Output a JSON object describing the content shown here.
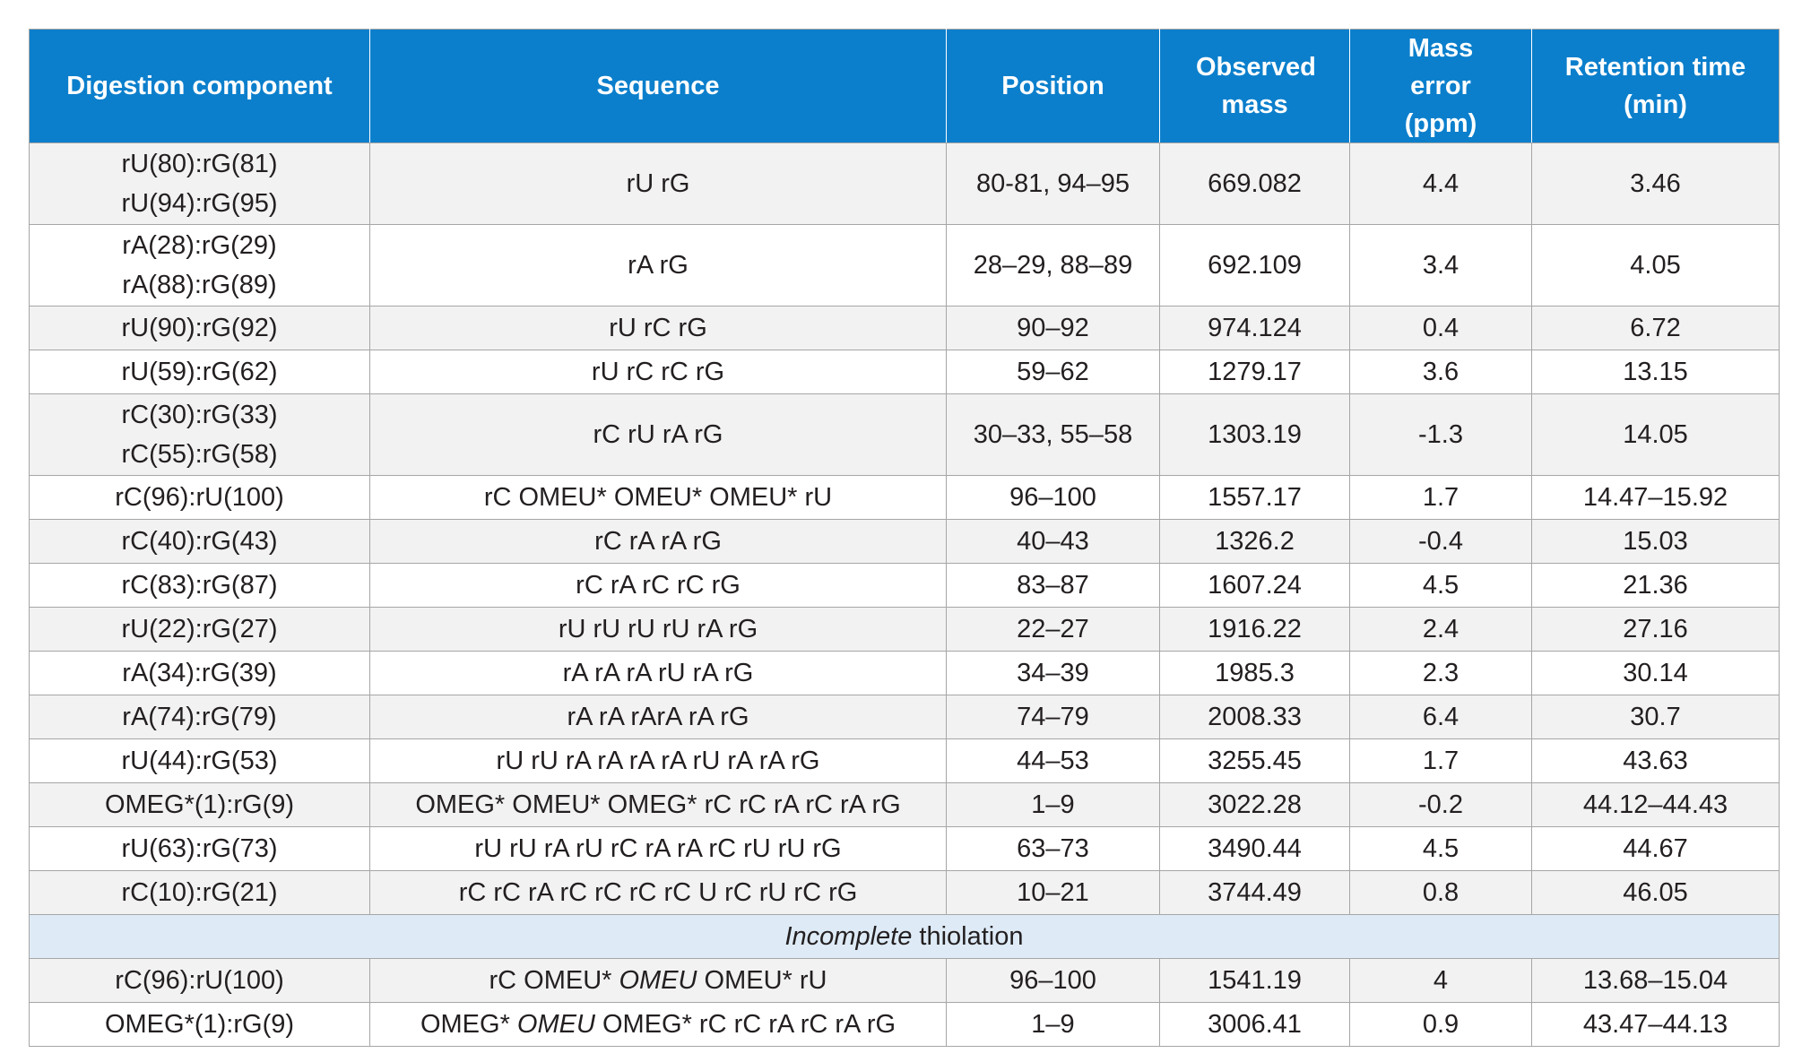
{
  "headers": {
    "component": "Digestion component",
    "sequence": "Sequence",
    "position": "Position",
    "observed_mass": "Observed mass",
    "mass_error": "Mass error (ppm)",
    "retention_time": "Retention time (min)"
  },
  "rows": [
    {
      "component_1": "rU(80):rG(81)",
      "component_2": "rU(94):rG(95)",
      "sequence": "rU rG",
      "position": "80-81, 94–95",
      "observed_mass": "669.082",
      "mass_error": "4.4",
      "retention_time": "3.46"
    },
    {
      "component_1": "rA(28):rG(29)",
      "component_2": "rA(88):rG(89)",
      "sequence": "rA rG",
      "position": "28–29, 88–89",
      "observed_mass": "692.109",
      "mass_error": "3.4",
      "retention_time": "4.05"
    },
    {
      "component_1": "rU(90):rG(92)",
      "sequence": "rU rC rG",
      "position": "90–92",
      "observed_mass": "974.124",
      "mass_error": "0.4",
      "retention_time": "6.72"
    },
    {
      "component_1": "rU(59):rG(62)",
      "sequence": "rU rC rC rG",
      "position": "59–62",
      "observed_mass": "1279.17",
      "mass_error": "3.6",
      "retention_time": "13.15"
    },
    {
      "component_1": "rC(30):rG(33)",
      "component_2": "rC(55):rG(58)",
      "sequence": "rC rU rA rG",
      "position": "30–33, 55–58",
      "observed_mass": "1303.19",
      "mass_error": "-1.3",
      "retention_time": "14.05"
    },
    {
      "component_1": "rC(96):rU(100)",
      "sequence": "rC OMEU* OMEU* OMEU* rU",
      "position": "96–100",
      "observed_mass": "1557.17",
      "mass_error": "1.7",
      "retention_time": "14.47–15.92"
    },
    {
      "component_1": "rC(40):rG(43)",
      "sequence": "rC rA rA rG",
      "position": "40–43",
      "observed_mass": "1326.2",
      "mass_error": "-0.4",
      "retention_time": "15.03"
    },
    {
      "component_1": "rC(83):rG(87)",
      "sequence": "rC rA rC rC rG",
      "position": "83–87",
      "observed_mass": "1607.24",
      "mass_error": "4.5",
      "retention_time": "21.36"
    },
    {
      "component_1": "rU(22):rG(27)",
      "sequence": "rU rU rU rU rA rG",
      "position": "22–27",
      "observed_mass": "1916.22",
      "mass_error": "2.4",
      "retention_time": "27.16"
    },
    {
      "component_1": "rA(34):rG(39)",
      "sequence": "rA rA rA rU rA rG",
      "position": "34–39",
      "observed_mass": "1985.3",
      "mass_error": "2.3",
      "retention_time": "30.14"
    },
    {
      "component_1": "rA(74):rG(79)",
      "sequence": "rA rA rArA rA rG",
      "position": "74–79",
      "observed_mass": "2008.33",
      "mass_error": "6.4",
      "retention_time": "30.7"
    },
    {
      "component_1": "rU(44):rG(53)",
      "sequence": "rU rU rA rA rA rA rU rA rA rG",
      "position": "44–53",
      "observed_mass": "3255.45",
      "mass_error": "1.7",
      "retention_time": "43.63"
    },
    {
      "component_1": "OMEG*(1):rG(9)",
      "sequence": "OMEG* OMEU* OMEG* rC rC rA rC rA rG",
      "position": "1–9",
      "observed_mass": "3022.28",
      "mass_error": "-0.2",
      "retention_time": "44.12–44.43"
    },
    {
      "component_1": "rU(63):rG(73)",
      "sequence": "rU rU rA rU rC rA rA rC rU rU rG",
      "position": "63–73",
      "observed_mass": "3490.44",
      "mass_error": "4.5",
      "retention_time": "44.67"
    },
    {
      "component_1": "rC(10):rG(21)",
      "sequence": "rC rC rA rC rC rC rC U rC rU rC rG",
      "position": "10–21",
      "observed_mass": "3744.49",
      "mass_error": "0.8",
      "retention_time": "46.05"
    }
  ],
  "section": {
    "label_italic": "Incomplete",
    "label_rest": " thiolation"
  },
  "incomplete_rows": [
    {
      "component_1": "rC(96):rU(100)",
      "seq_before": "rC OMEU* ",
      "seq_italic": "OMEU",
      "seq_after": " OMEU* rU",
      "position": "96–100",
      "observed_mass": "1541.19",
      "mass_error": "4",
      "retention_time": "13.68–15.04"
    },
    {
      "component_1": "OMEG*(1):rG(9)",
      "seq_before": "OMEG* ",
      "seq_italic": "OMEU",
      "seq_after": " OMEG* rC rC rA rC rA rG",
      "position": "1–9",
      "observed_mass": "3006.41",
      "mass_error": "0.9",
      "retention_time": "43.47–44.13"
    }
  ],
  "colors": {
    "header_bg": "#0b7fcc",
    "header_text": "#ffffff",
    "row_alt_bg": "#f2f2f2",
    "section_bg": "#deebf7",
    "border": "#a6a6a6"
  }
}
